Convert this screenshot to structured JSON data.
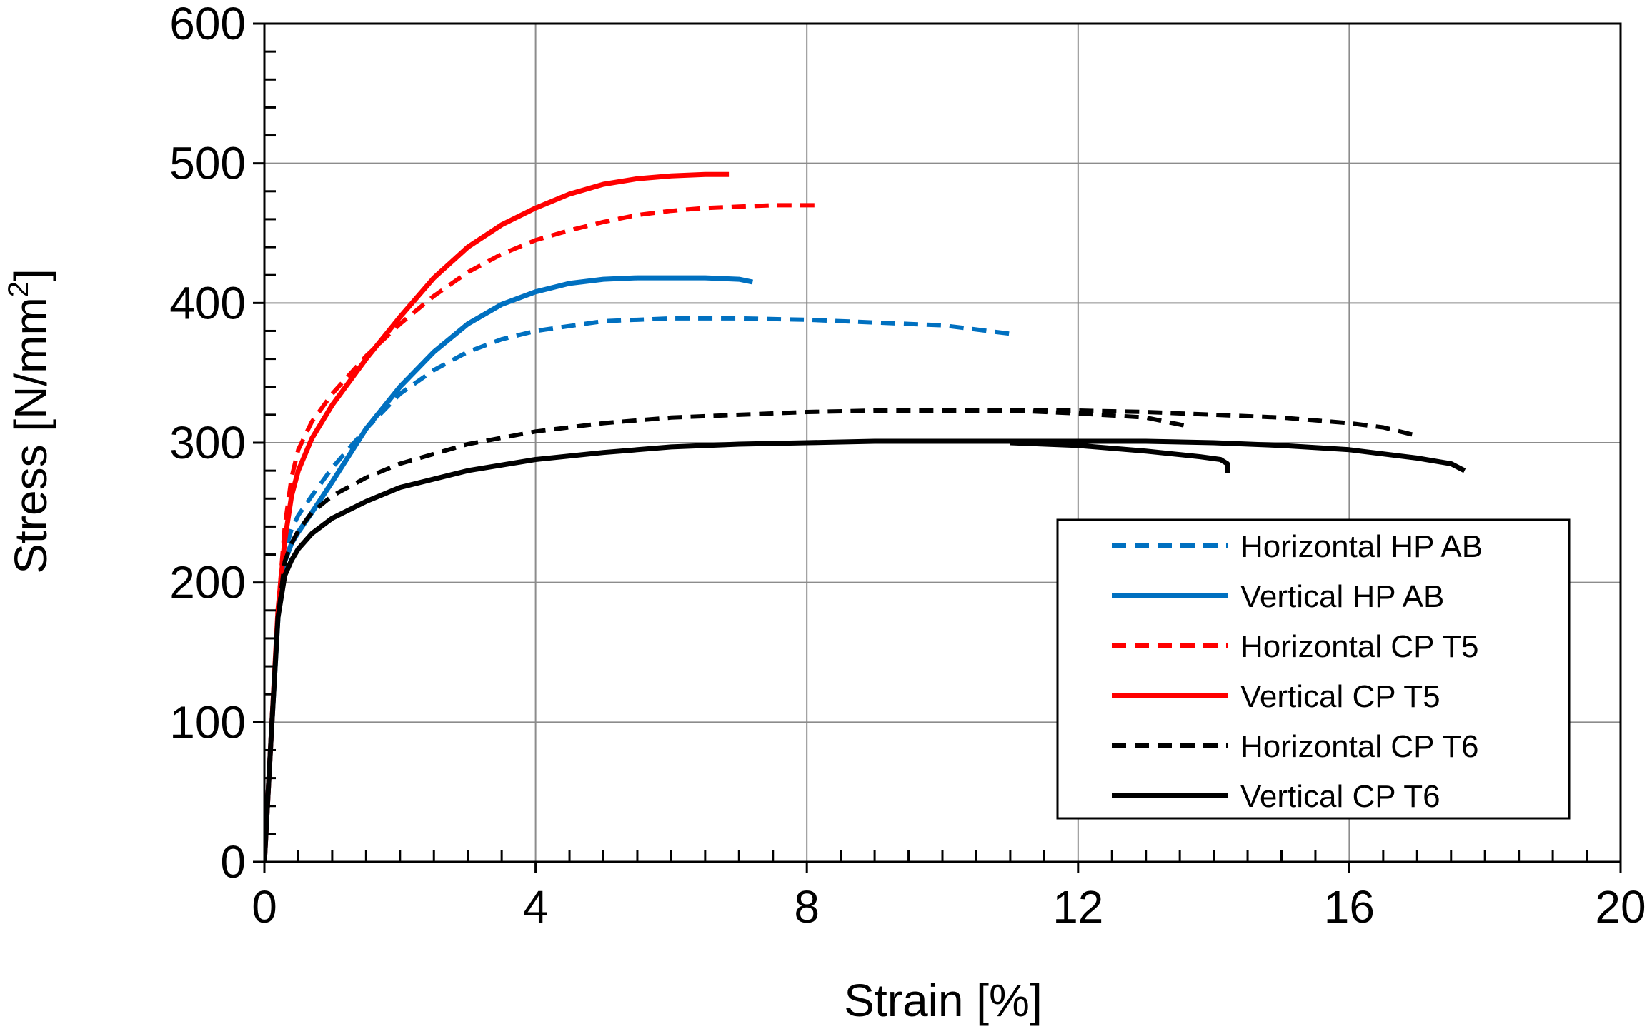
{
  "chart_data": {
    "type": "line",
    "title": "",
    "xlabel": "Strain [%]",
    "ylabel_main": "Stress [N/mm",
    "ylabel_sup": "2",
    "ylabel_end": "]",
    "xlim": [
      0,
      20
    ],
    "ylim": [
      0,
      600
    ],
    "xticks": [
      0,
      4,
      8,
      12,
      16,
      20
    ],
    "xtick_labels": [
      "0",
      "4",
      "8",
      "12",
      "16",
      "20"
    ],
    "yticks": [
      0,
      100,
      200,
      300,
      400,
      500,
      600
    ],
    "ytick_labels": [
      "0",
      "100",
      "200",
      "300",
      "400",
      "500",
      "600"
    ],
    "grid": true,
    "legend_position": "lower-right",
    "series": [
      {
        "name": "Horizontal HP AB",
        "color": "#0070C0",
        "dashed": true,
        "x": [
          0,
          0.1,
          0.2,
          0.3,
          0.4,
          0.5,
          0.7,
          1.0,
          1.5,
          2.0,
          2.5,
          3.0,
          3.5,
          4.0,
          5.0,
          6.0,
          7.0,
          8.0,
          9.0,
          10.0,
          11.0
        ],
        "y": [
          0,
          90,
          175,
          222,
          238,
          248,
          262,
          282,
          310,
          335,
          352,
          365,
          374,
          380,
          387,
          389,
          389,
          388,
          386,
          384,
          378
        ]
      },
      {
        "name": "Vertical HP AB",
        "color": "#0070C0",
        "dashed": false,
        "x": [
          0,
          0.1,
          0.2,
          0.3,
          0.4,
          0.5,
          0.7,
          1.0,
          1.5,
          2.0,
          2.5,
          3.0,
          3.5,
          4.0,
          4.5,
          5.0,
          5.5,
          6.0,
          6.5,
          7.0,
          7.2
        ],
        "y": [
          0,
          90,
          175,
          215,
          228,
          236,
          250,
          272,
          310,
          340,
          365,
          385,
          399,
          408,
          414,
          417,
          418,
          418,
          418,
          417,
          415
        ]
      },
      {
        "name": "Horizontal CP T5",
        "color": "#FF0000",
        "dashed": true,
        "x": [
          0,
          0.1,
          0.2,
          0.3,
          0.4,
          0.5,
          0.7,
          1.0,
          1.5,
          2.0,
          2.5,
          3.0,
          3.5,
          4.0,
          4.5,
          5.0,
          5.5,
          6.0,
          6.5,
          7.0,
          7.5,
          8.2
        ],
        "y": [
          0,
          90,
          180,
          240,
          275,
          295,
          315,
          335,
          362,
          385,
          405,
          422,
          435,
          445,
          452,
          458,
          463,
          466,
          468,
          469,
          470,
          470
        ]
      },
      {
        "name": "Vertical CP T5",
        "color": "#FF0000",
        "dashed": false,
        "x": [
          0,
          0.1,
          0.2,
          0.3,
          0.4,
          0.5,
          0.7,
          1.0,
          1.5,
          2.0,
          2.5,
          3.0,
          3.5,
          4.0,
          4.5,
          5.0,
          5.5,
          6.0,
          6.5,
          6.85
        ],
        "y": [
          0,
          90,
          180,
          230,
          262,
          280,
          303,
          327,
          360,
          390,
          418,
          440,
          456,
          468,
          478,
          485,
          489,
          491,
          492,
          492
        ]
      },
      {
        "name": "Horizontal CP T6",
        "color": "#000000",
        "dashed": true,
        "x": [
          0,
          0.1,
          0.2,
          0.3,
          0.4,
          0.5,
          0.7,
          1.0,
          1.5,
          2.0,
          3.0,
          4.0,
          5.0,
          6.0,
          7.0,
          8.0,
          9.0,
          10.0,
          11.0,
          12.0,
          13.0,
          14.0,
          15.0,
          16.0,
          16.5,
          17.0
        ],
        "y": [
          0,
          90,
          175,
          215,
          228,
          237,
          250,
          262,
          275,
          285,
          299,
          308,
          314,
          318,
          320,
          322,
          323,
          323,
          323,
          323,
          322,
          320,
          318,
          314,
          311,
          305
        ]
      },
      {
        "name": "Vertical CP T6",
        "color": "#000000",
        "dashed": false,
        "x": [
          0,
          0.1,
          0.2,
          0.3,
          0.4,
          0.5,
          0.7,
          1.0,
          1.5,
          2.0,
          3.0,
          4.0,
          5.0,
          6.0,
          7.0,
          8.0,
          9.0,
          10.0,
          11.0,
          12.0,
          13.0,
          14.0,
          15.0,
          16.0,
          17.0,
          17.5,
          17.7
        ],
        "y": [
          0,
          90,
          175,
          205,
          216,
          224,
          235,
          246,
          258,
          268,
          280,
          288,
          293,
          297,
          299,
          300,
          301,
          301,
          301,
          301,
          301,
          300,
          298,
          295,
          289,
          285,
          280
        ]
      },
      {
        "name": "",
        "legend": false,
        "color": "#000000",
        "dashed": true,
        "x": [
          11.0,
          12.0,
          13.0,
          13.6
        ],
        "y": [
          323,
          321,
          318,
          312
        ]
      },
      {
        "name": "",
        "legend": false,
        "color": "#000000",
        "dashed": false,
        "x": [
          11.0,
          12.0,
          13.0,
          13.8,
          14.1,
          14.2,
          14.2
        ],
        "y": [
          300,
          298,
          294,
          290,
          288,
          285,
          278
        ]
      }
    ]
  }
}
